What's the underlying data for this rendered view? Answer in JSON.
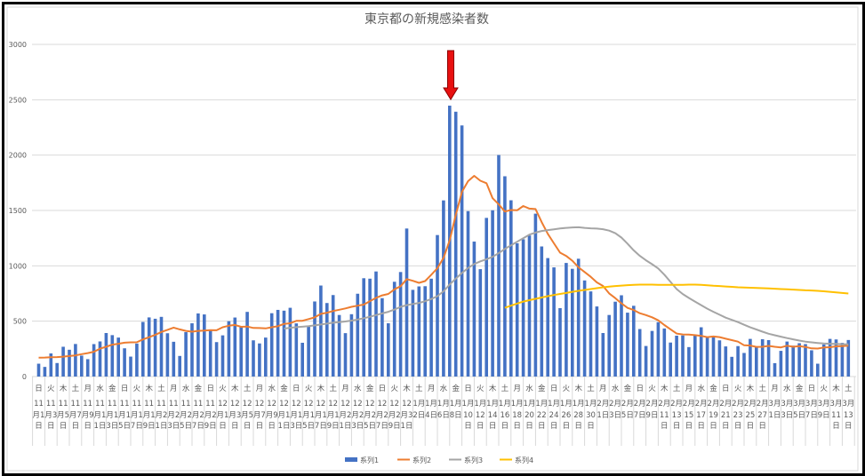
{
  "chart_data": {
    "type": "bar+line",
    "title": "東京都の新規感染者数",
    "ylim": [
      0,
      3000
    ],
    "yticks": [
      "0",
      "500",
      "1000",
      "1500",
      "2000",
      "2500",
      "3000"
    ],
    "grid": "horizontal",
    "legend_position": "bottom",
    "annotation": "red-down-arrow-at-peak",
    "x_labels": [
      {
        "weekday": "日",
        "date": "11月1日"
      },
      {
        "weekday": "火",
        "date": "11月3日"
      },
      {
        "weekday": "木",
        "date": "11月5日"
      },
      {
        "weekday": "土",
        "date": "11月7日"
      },
      {
        "weekday": "月",
        "date": "11月9日"
      },
      {
        "weekday": "水",
        "date": "11月11日"
      },
      {
        "weekday": "金",
        "date": "11月13日"
      },
      {
        "weekday": "日",
        "date": "11月15日"
      },
      {
        "weekday": "火",
        "date": "11月17日"
      },
      {
        "weekday": "木",
        "date": "11月19日"
      },
      {
        "weekday": "土",
        "date": "11月21日"
      },
      {
        "weekday": "月",
        "date": "11月23日"
      },
      {
        "weekday": "水",
        "date": "11月25日"
      },
      {
        "weekday": "金",
        "date": "11月27日"
      },
      {
        "weekday": "日",
        "date": "11月29日"
      },
      {
        "weekday": "火",
        "date": "12月1日"
      },
      {
        "weekday": "木",
        "date": "12月3日"
      },
      {
        "weekday": "土",
        "date": "12月5日"
      },
      {
        "weekday": "月",
        "date": "12月7日"
      },
      {
        "weekday": "水",
        "date": "12月9日"
      },
      {
        "weekday": "金",
        "date": "12月11日"
      },
      {
        "weekday": "日",
        "date": "12月13日"
      },
      {
        "weekday": "火",
        "date": "12月15日"
      },
      {
        "weekday": "木",
        "date": "12月17日"
      },
      {
        "weekday": "土",
        "date": "12月19日"
      },
      {
        "weekday": "月",
        "date": "12月21日"
      },
      {
        "weekday": "水",
        "date": "12月23日"
      },
      {
        "weekday": "金",
        "date": "12月25日"
      },
      {
        "weekday": "日",
        "date": "12月27日"
      },
      {
        "weekday": "火",
        "date": "12月29日"
      },
      {
        "weekday": "木",
        "date": "12月31日"
      },
      {
        "weekday": "土",
        "date": "1月2日"
      },
      {
        "weekday": "月",
        "date": "1月4日"
      },
      {
        "weekday": "水",
        "date": "1月6日"
      },
      {
        "weekday": "金",
        "date": "1月8日"
      },
      {
        "weekday": "日",
        "date": "1月10日"
      },
      {
        "weekday": "火",
        "date": "1月12日"
      },
      {
        "weekday": "木",
        "date": "1月14日"
      },
      {
        "weekday": "土",
        "date": "1月16日"
      },
      {
        "weekday": "月",
        "date": "1月18日"
      },
      {
        "weekday": "水",
        "date": "1月20日"
      },
      {
        "weekday": "金",
        "date": "1月22日"
      },
      {
        "weekday": "日",
        "date": "1月24日"
      },
      {
        "weekday": "火",
        "date": "1月26日"
      },
      {
        "weekday": "木",
        "date": "1月28日"
      },
      {
        "weekday": "土",
        "date": "1月30日"
      },
      {
        "weekday": "月",
        "date": "2月1日"
      },
      {
        "weekday": "水",
        "date": "2月3日"
      },
      {
        "weekday": "金",
        "date": "2月5日"
      },
      {
        "weekday": "日",
        "date": "2月7日"
      },
      {
        "weekday": "火",
        "date": "2月9日"
      },
      {
        "weekday": "木",
        "date": "2月11日"
      },
      {
        "weekday": "土",
        "date": "2月13日"
      },
      {
        "weekday": "月",
        "date": "2月15日"
      },
      {
        "weekday": "水",
        "date": "2月17日"
      },
      {
        "weekday": "金",
        "date": "2月19日"
      },
      {
        "weekday": "日",
        "date": "2月21日"
      },
      {
        "weekday": "火",
        "date": "2月23日"
      },
      {
        "weekday": "木",
        "date": "2月25日"
      },
      {
        "weekday": "土",
        "date": "2月27日"
      },
      {
        "weekday": "月",
        "date": "3月1日"
      },
      {
        "weekday": "水",
        "date": "3月3日"
      },
      {
        "weekday": "金",
        "date": "3月5日"
      },
      {
        "weekday": "日",
        "date": "3月7日"
      },
      {
        "weekday": "火",
        "date": "3月9日"
      },
      {
        "weekday": "木",
        "date": "3月11日"
      },
      {
        "weekday": "土",
        "date": "3月13日"
      }
    ],
    "series": [
      {
        "name": "系列1",
        "type": "bar",
        "color": "#4472C4",
        "values": [
          116,
          87,
          209,
          122,
          269,
          242,
          294,
          189,
          157,
          293,
          317,
          393,
          374,
          352,
          255,
          180,
          298,
          493,
          534,
          522,
          539,
          391,
          314,
          186,
          401,
          481,
          570,
          561,
          418,
          311,
          372,
          500,
          533,
          449,
          584,
          327,
          299,
          352,
          572,
          602,
          595,
          621,
          480,
          305,
          460,
          678,
          822,
          664,
          736,
          556,
          392,
          563,
          748,
          888,
          884,
          949,
          708,
          481,
          856,
          944,
          1337,
          783,
          814,
          816,
          884,
          1278,
          1591,
          2447,
          2392,
          2268,
          1494,
          1219,
          970,
          1433,
          1502,
          2001,
          1809,
          1592,
          1204,
          1240,
          1274,
          1471,
          1175,
          1070,
          986,
          618,
          1026,
          973,
          1064,
          868,
          769,
          633,
          393,
          556,
          676,
          734,
          577,
          639,
          429,
          276,
          412,
          491,
          434,
          307,
          369,
          371,
          266,
          378,
          445,
          353,
          353,
          327,
          272,
          178,
          275,
          213,
          340,
          270,
          337,
          329,
          121,
          232,
          316,
          279,
          301,
          293,
          237,
          116,
          290,
          340,
          335,
          304,
          330
        ]
      },
      {
        "name": "系列2",
        "type": "line",
        "color": "#ED7D31",
        "values": [
          170,
          172,
          175,
          176,
          180,
          185,
          191,
          202,
          212,
          224,
          252,
          269,
          288,
          296,
          306,
          309,
          310,
          335,
          355,
          376,
          403,
          422,
          442,
          426,
          412,
          405,
          412,
          415,
          419,
          418,
          445,
          459,
          466,
          449,
          452,
          439,
          438,
          435,
          445,
          455,
          476,
          481,
          503,
          504,
          519,
          534,
          566,
          576,
          592,
          603,
          615,
          630,
          640,
          650,
          681,
          711,
          733,
          746,
          788,
          816,
          880,
          865,
          846,
          862,
          919,
          979,
          1072,
          1230,
          1460,
          1668,
          1765,
          1813,
          1769,
          1746,
          1611,
          1555,
          1490,
          1504,
          1502,
          1540,
          1517,
          1513,
          1395,
          1289,
          1203,
          1119,
          1089,
          1046,
          987,
          944,
          901,
          850,
          818,
          751,
          708,
          661,
          620,
          601,
          572,
          555,
          535,
          508,
          465,
          427,
          388,
          380,
          379,
          374,
          367,
          356,
          362,
          356,
          342,
          329,
          315,
          282,
          280,
          268,
          269,
          277,
          269,
          263,
          278,
          269,
          274,
          267,
          254,
          253,
          262,
          265,
          273,
          274,
          279
        ]
      },
      {
        "name": "系列3",
        "type": "line",
        "color": "#A5A5A5",
        "values": [
          null,
          null,
          null,
          null,
          null,
          null,
          null,
          null,
          null,
          null,
          null,
          null,
          null,
          null,
          null,
          null,
          null,
          null,
          null,
          null,
          null,
          null,
          null,
          null,
          null,
          null,
          null,
          null,
          null,
          null,
          null,
          null,
          null,
          null,
          null,
          null,
          null,
          null,
          null,
          null,
          433,
          440,
          446,
          450,
          455,
          462,
          470,
          478,
          486,
          492,
          497,
          505,
          515,
          527,
          540,
          555,
          570,
          585,
          605,
          630,
          645,
          655,
          665,
          680,
          700,
          726,
          770,
          831,
          885,
          935,
          980,
          1016,
          1040,
          1060,
          1081,
          1115,
          1153,
          1185,
          1218,
          1250,
          1282,
          1300,
          1315,
          1323,
          1330,
          1337,
          1343,
          1347,
          1348,
          1343,
          1339,
          1336,
          1331,
          1318,
          1295,
          1255,
          1200,
          1140,
          1090,
          1050,
          1015,
          976,
          920,
          855,
          790,
          745,
          710,
          677,
          645,
          613,
          585,
          558,
          532,
          512,
          492,
          468,
          444,
          425,
          405,
          387,
          373,
          360,
          347,
          336,
          325,
          315,
          309,
          303,
          298,
          296,
          294,
          292,
          290
        ]
      },
      {
        "name": "系列4",
        "type": "line",
        "color": "#FFC000",
        "values": [
          null,
          null,
          null,
          null,
          null,
          null,
          null,
          null,
          null,
          null,
          null,
          null,
          null,
          null,
          null,
          null,
          null,
          null,
          null,
          null,
          null,
          null,
          null,
          null,
          null,
          null,
          null,
          null,
          null,
          null,
          null,
          null,
          null,
          null,
          null,
          null,
          null,
          null,
          null,
          null,
          null,
          null,
          null,
          null,
          null,
          null,
          null,
          null,
          null,
          null,
          null,
          null,
          null,
          null,
          null,
          null,
          null,
          null,
          null,
          null,
          null,
          null,
          null,
          null,
          null,
          null,
          null,
          null,
          null,
          null,
          null,
          null,
          null,
          null,
          null,
          null,
          621,
          640,
          659,
          677,
          690,
          702,
          714,
          726,
          736,
          746,
          755,
          765,
          774,
          782,
          790,
          798,
          806,
          812,
          817,
          821,
          825,
          828,
          830,
          830,
          830,
          829,
          829,
          828,
          828,
          829,
          830,
          830,
          828,
          824,
          820,
          817,
          813,
          810,
          806,
          804,
          802,
          800,
          798,
          796,
          793,
          790,
          788,
          785,
          782,
          779,
          777,
          774,
          770,
          765,
          760,
          755,
          750
        ]
      }
    ]
  }
}
